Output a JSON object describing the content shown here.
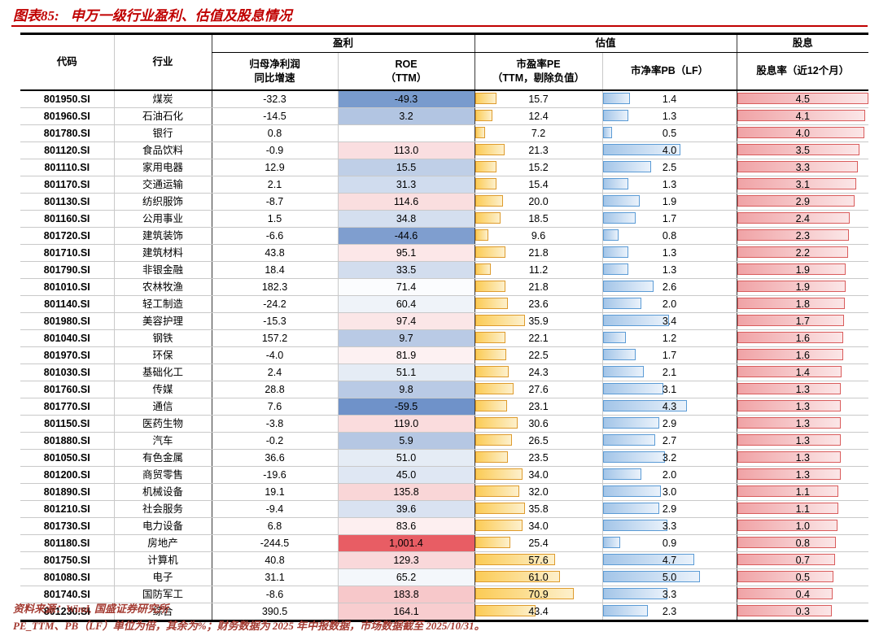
{
  "title": {
    "label": "图表85:",
    "text": "申万一级行业盈利、估值及股息情况"
  },
  "chart_data": {
    "type": "table",
    "title": "申万一级行业盈利、估值及股息情况",
    "col_headers": {
      "code": "代码",
      "industry": "行业",
      "group_profit": "盈利",
      "group_valuation": "估值",
      "group_dividend": "股息",
      "growth_line1": "归母净利润",
      "growth_line2": "同比增速",
      "roe_line1": "ROE",
      "roe_line2": "（TTM）",
      "pe_line1": "市盈率PE",
      "pe_line2": "（TTM，剔除负值）",
      "pb": "市净率PB（LF）",
      "dividend": "股息率（近12个月）"
    },
    "rows": [
      {
        "code": "801950.SI",
        "industry": "煤炭",
        "growth": "-32.3",
        "roe": "-49.3",
        "pe": 15.7,
        "pb": 1.4,
        "dividend": 4.5
      },
      {
        "code": "801960.SI",
        "industry": "石油石化",
        "growth": "-14.5",
        "roe": "3.2",
        "pe": 12.4,
        "pb": 1.3,
        "dividend": 4.1
      },
      {
        "code": "801780.SI",
        "industry": "银行",
        "growth": "0.8",
        "roe": "",
        "pe": 7.2,
        "pb": 0.5,
        "dividend": 4.0
      },
      {
        "code": "801120.SI",
        "industry": "食品饮料",
        "growth": "-0.9",
        "roe": "113.0",
        "pe": 21.3,
        "pb": 4.0,
        "dividend": 3.5
      },
      {
        "code": "801110.SI",
        "industry": "家用电器",
        "growth": "12.9",
        "roe": "15.5",
        "pe": 15.2,
        "pb": 2.5,
        "dividend": 3.3
      },
      {
        "code": "801170.SI",
        "industry": "交通运输",
        "growth": "2.1",
        "roe": "31.3",
        "pe": 15.4,
        "pb": 1.3,
        "dividend": 3.1
      },
      {
        "code": "801130.SI",
        "industry": "纺织服饰",
        "growth": "-8.7",
        "roe": "114.6",
        "pe": 20.0,
        "pb": 1.9,
        "dividend": 2.9
      },
      {
        "code": "801160.SI",
        "industry": "公用事业",
        "growth": "1.5",
        "roe": "34.8",
        "pe": 18.5,
        "pb": 1.7,
        "dividend": 2.4
      },
      {
        "code": "801720.SI",
        "industry": "建筑装饰",
        "growth": "-6.6",
        "roe": "-44.6",
        "pe": 9.6,
        "pb": 0.8,
        "dividend": 2.3
      },
      {
        "code": "801710.SI",
        "industry": "建筑材料",
        "growth": "43.8",
        "roe": "95.1",
        "pe": 21.8,
        "pb": 1.3,
        "dividend": 2.2
      },
      {
        "code": "801790.SI",
        "industry": "非银金融",
        "growth": "18.4",
        "roe": "33.5",
        "pe": 11.2,
        "pb": 1.3,
        "dividend": 1.9
      },
      {
        "code": "801010.SI",
        "industry": "农林牧渔",
        "growth": "182.3",
        "roe": "71.4",
        "pe": 21.8,
        "pb": 2.6,
        "dividend": 1.9
      },
      {
        "code": "801140.SI",
        "industry": "轻工制造",
        "growth": "-24.2",
        "roe": "60.4",
        "pe": 23.6,
        "pb": 2.0,
        "dividend": 1.8
      },
      {
        "code": "801980.SI",
        "industry": "美容护理",
        "growth": "-15.3",
        "roe": "97.4",
        "pe": 35.9,
        "pb": 3.4,
        "dividend": 1.7
      },
      {
        "code": "801040.SI",
        "industry": "钢铁",
        "growth": "157.2",
        "roe": "9.7",
        "pe": 22.1,
        "pb": 1.2,
        "dividend": 1.6
      },
      {
        "code": "801970.SI",
        "industry": "环保",
        "growth": "-4.0",
        "roe": "81.9",
        "pe": 22.5,
        "pb": 1.7,
        "dividend": 1.6
      },
      {
        "code": "801030.SI",
        "industry": "基础化工",
        "growth": "2.4",
        "roe": "51.1",
        "pe": 24.3,
        "pb": 2.1,
        "dividend": 1.4
      },
      {
        "code": "801760.SI",
        "industry": "传媒",
        "growth": "28.8",
        "roe": "9.8",
        "pe": 27.6,
        "pb": 3.1,
        "dividend": 1.3
      },
      {
        "code": "801770.SI",
        "industry": "通信",
        "growth": "7.6",
        "roe": "-59.5",
        "pe": 23.1,
        "pb": 4.3,
        "dividend": 1.3
      },
      {
        "code": "801150.SI",
        "industry": "医药生物",
        "growth": "-3.8",
        "roe": "119.0",
        "pe": 30.6,
        "pb": 2.9,
        "dividend": 1.3
      },
      {
        "code": "801880.SI",
        "industry": "汽车",
        "growth": "-0.2",
        "roe": "5.9",
        "pe": 26.5,
        "pb": 2.7,
        "dividend": 1.3
      },
      {
        "code": "801050.SI",
        "industry": "有色金属",
        "growth": "36.6",
        "roe": "51.0",
        "pe": 23.5,
        "pb": 3.2,
        "dividend": 1.3
      },
      {
        "code": "801200.SI",
        "industry": "商贸零售",
        "growth": "-19.6",
        "roe": "45.0",
        "pe": 34.0,
        "pb": 2.0,
        "dividend": 1.3
      },
      {
        "code": "801890.SI",
        "industry": "机械设备",
        "growth": "19.1",
        "roe": "135.8",
        "pe": 32.0,
        "pb": 3.0,
        "dividend": 1.1
      },
      {
        "code": "801210.SI",
        "industry": "社会服务",
        "growth": "-9.4",
        "roe": "39.6",
        "pe": 35.8,
        "pb": 2.9,
        "dividend": 1.1
      },
      {
        "code": "801730.SI",
        "industry": "电力设备",
        "growth": "6.8",
        "roe": "83.6",
        "pe": 34.0,
        "pb": 3.3,
        "dividend": 1.0
      },
      {
        "code": "801180.SI",
        "industry": "房地产",
        "growth": "-244.5",
        "roe": "1,001.4",
        "pe": 25.4,
        "pb": 0.9,
        "dividend": 0.8
      },
      {
        "code": "801750.SI",
        "industry": "计算机",
        "growth": "40.8",
        "roe": "129.3",
        "pe": 57.6,
        "pb": 4.7,
        "dividend": 0.7
      },
      {
        "code": "801080.SI",
        "industry": "电子",
        "growth": "31.1",
        "roe": "65.2",
        "pe": 61.0,
        "pb": 5.0,
        "dividend": 0.5
      },
      {
        "code": "801740.SI",
        "industry": "国防军工",
        "growth": "-8.6",
        "roe": "183.8",
        "pe": 70.9,
        "pb": 3.3,
        "dividend": 0.4
      },
      {
        "code": "801230.SI",
        "industry": "综合",
        "growth": "390.5",
        "roe": "164.1",
        "pe": 43.4,
        "pb": 2.3,
        "dividend": 0.3
      }
    ]
  },
  "footer": {
    "source_label": "资料来源：",
    "source_wind": "Wind,",
    "source_org": " 国盛证券研究所",
    "note": "PE_TTM、PB（LF）单位为倍，其余为%；财务数据为 2025 年中报数据，市场数据截至 2025/10/31。"
  },
  "colors": {
    "title_red": "#C00000",
    "footer_red": "#A33A31",
    "pe_bar_border": "#DE9B2D",
    "pe_bar_fill": "#FBCB55",
    "pb_bar_border": "#5B9BD5",
    "pb_bar_fill": "#A3C5E8",
    "div_bar_border": "#D95C5C",
    "div_bar_fill": "#F0A3A6",
    "heatmap_blue": "#6E92C9",
    "heatmap_red": "#E85D64"
  }
}
